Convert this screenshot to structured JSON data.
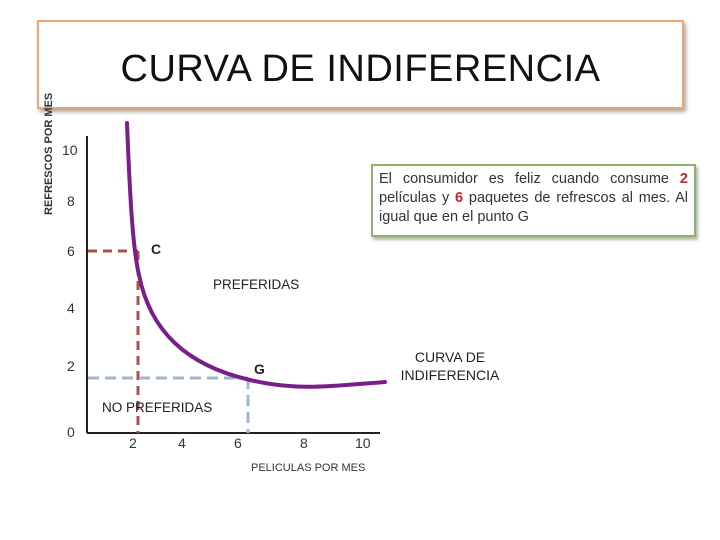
{
  "title": "CURVA DE INDIFERENCIA",
  "y_axis_label": "REFRESCOS POR MES",
  "x_axis_label": "PELICULAS POR MES",
  "y_ticks": [
    "10",
    "8",
    "6",
    "4",
    "2",
    "0"
  ],
  "x_ticks": [
    "2",
    "4",
    "6",
    "8",
    "10"
  ],
  "note": {
    "part1": "El consumidor es feliz cuando consume ",
    "highlight1": "2",
    "part2": " películas y ",
    "highlight2": "6",
    "part3": " paquetes de refrescos al mes. Al igual que  en  el punto G"
  },
  "labels": {
    "point_c": "C",
    "point_g": "G",
    "preferidas": "PREFERIDAS",
    "no_preferidas": "NO PREFERIDAS",
    "curve_name_line1": "CURVA DE",
    "curve_name_line2": "INDIFERENCIA"
  },
  "colors": {
    "curve": "#7a1f8a",
    "axis": "#222222",
    "dash_c": "#a8504a",
    "dash_g": "#9fb6d3",
    "title_border": "#e8a774",
    "note_border": "#8db36a",
    "highlight": "#c0282d"
  },
  "points": {
    "C": {
      "peliculas": 2,
      "refrescos": 6
    },
    "G": {
      "peliculas": 6,
      "refrescos": 1.5
    }
  }
}
